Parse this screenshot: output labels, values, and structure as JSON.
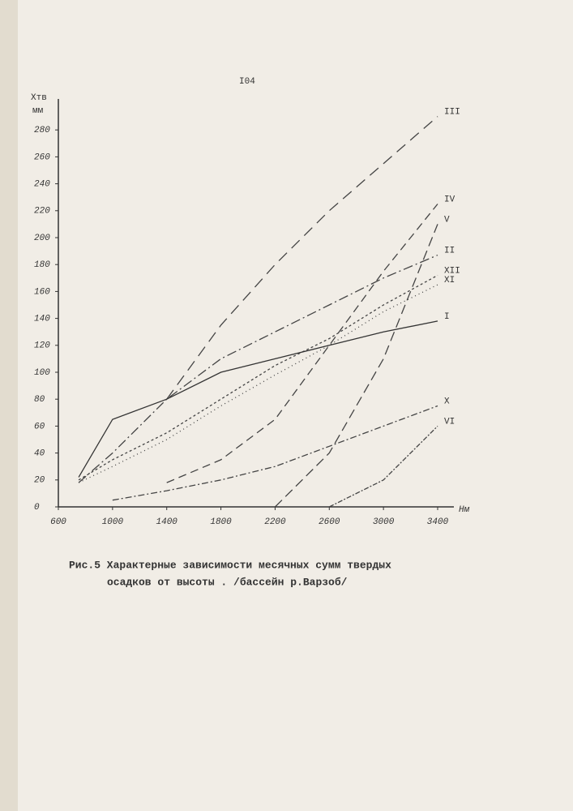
{
  "page_number": "I04",
  "caption": [
    "Рис.5 Характерные зависимости месячных сумм твердых",
    "осадков от высоты . /бассейн р.Варзоб/"
  ],
  "chart_data": {
    "type": "line",
    "y_label": "Xтв",
    "y_unit": "мм",
    "x_label": "Нм",
    "x": [
      750,
      1000,
      1400,
      1800,
      2200,
      2600,
      3000,
      3400
    ],
    "xlim": [
      600,
      3400
    ],
    "xticks": [
      600,
      1000,
      1400,
      1800,
      2200,
      2600,
      3000,
      3400
    ],
    "ylim": [
      0,
      300
    ],
    "yticks": [
      0,
      20,
      40,
      60,
      80,
      100,
      120,
      140,
      160,
      180,
      200,
      220,
      240,
      260,
      280
    ],
    "series": [
      {
        "name": "III",
        "color": "#444",
        "dash": "14 8",
        "values": [
          null,
          null,
          80,
          135,
          180,
          220,
          255,
          290
        ]
      },
      {
        "name": "IV",
        "color": "#444",
        "dash": "10 6",
        "values": [
          null,
          null,
          18,
          35,
          65,
          120,
          175,
          225
        ]
      },
      {
        "name": "V",
        "color": "#444",
        "dash": "12 6",
        "values": [
          null,
          null,
          null,
          null,
          0,
          40,
          110,
          210
        ]
      },
      {
        "name": "II",
        "color": "#444",
        "dash": "12 4 2 4",
        "values": [
          18,
          40,
          80,
          110,
          130,
          150,
          170,
          187
        ]
      },
      {
        "name": "XII",
        "color": "#444",
        "dash": "3 3",
        "values": [
          20,
          35,
          55,
          80,
          105,
          125,
          150,
          172
        ]
      },
      {
        "name": "XI",
        "color": "#444",
        "dash": "1 4",
        "values": [
          18,
          30,
          50,
          75,
          98,
          120,
          145,
          165
        ]
      },
      {
        "name": "I",
        "color": "#333",
        "dash": "",
        "values": [
          22,
          65,
          80,
          100,
          110,
          120,
          130,
          138
        ]
      },
      {
        "name": "X",
        "color": "#444",
        "dash": "8 3 2 3",
        "values": [
          null,
          5,
          12,
          20,
          30,
          45,
          60,
          75
        ]
      },
      {
        "name": "VI",
        "color": "#444",
        "dash": "6 2 2 2",
        "values": [
          null,
          null,
          null,
          null,
          null,
          0,
          20,
          60
        ]
      }
    ]
  }
}
